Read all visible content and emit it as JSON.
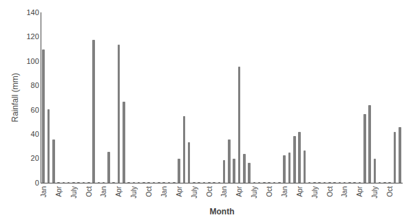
{
  "chart_data": {
    "type": "bar",
    "xlabel": "Month",
    "ylabel": "Rainfall (mm)",
    "categories": [
      "Jan",
      null,
      null,
      "Apr",
      null,
      null,
      "July",
      null,
      null,
      "Oct",
      null,
      null,
      "Jan",
      null,
      null,
      "Apr",
      null,
      null,
      "July",
      null,
      null,
      "Oct",
      null,
      null,
      "Jan",
      null,
      null,
      "Apr",
      null,
      null,
      "July",
      null,
      null,
      "Oct",
      null,
      null,
      "Jan",
      null,
      null,
      "Apr",
      null,
      null,
      "July",
      null,
      null,
      "Oct",
      null,
      null,
      "Jan",
      null,
      null,
      "Apr",
      null,
      null,
      "July",
      null,
      null,
      "Oct",
      null,
      null,
      "Jan",
      null,
      null,
      "Apr",
      null,
      null,
      "July",
      null,
      null,
      "Oct",
      null,
      null
    ],
    "values": [
      109,
      60,
      35,
      0,
      0,
      0,
      0,
      0,
      0,
      0,
      117,
      0,
      0,
      25,
      0,
      113,
      66,
      0,
      0,
      0,
      0,
      0,
      0,
      0,
      0,
      0,
      0,
      19,
      54,
      33,
      0,
      0,
      0,
      0,
      0,
      0,
      18,
      35,
      19,
      95,
      23,
      16,
      0,
      0,
      0,
      0,
      0,
      0,
      22,
      24,
      38,
      41,
      26,
      0,
      0,
      0,
      0,
      0,
      0,
      0,
      0,
      0,
      0,
      0,
      56,
      63,
      19,
      0,
      0,
      0,
      41,
      45
    ],
    "color": "#808080",
    "ylim": [
      0,
      140
    ],
    "yticks": [
      0,
      20,
      40,
      60,
      80,
      100,
      120,
      140
    ],
    "grid": false
  }
}
